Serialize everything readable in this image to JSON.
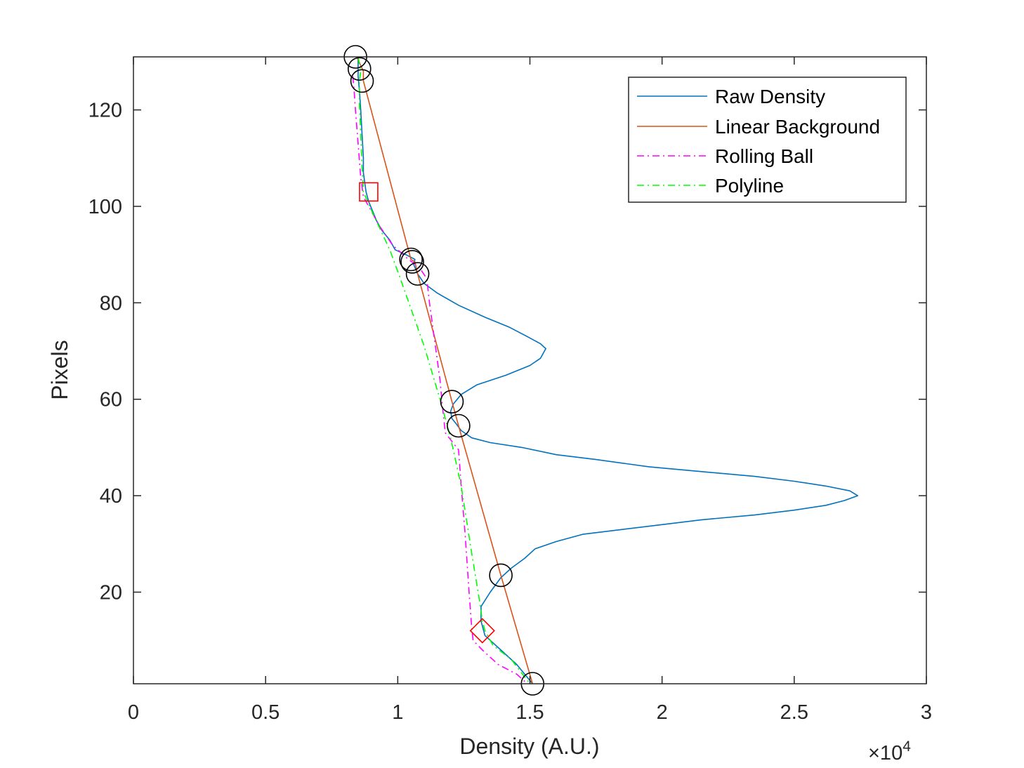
{
  "chart_data": {
    "type": "line",
    "title": "",
    "xlabel": "Density (A.U.)",
    "ylabel": "Pixels",
    "x_exponent_label": "×10",
    "x_exponent_power": "4",
    "xlim": [
      0,
      30000
    ],
    "ylim": [
      1,
      131
    ],
    "x_ticks": [
      0,
      5000,
      10000,
      15000,
      20000,
      25000,
      30000
    ],
    "x_tick_labels": [
      "0",
      "0.5",
      "1",
      "1.5",
      "2",
      "2.5",
      "3"
    ],
    "y_ticks": [
      20,
      40,
      60,
      80,
      100,
      120
    ],
    "y_tick_labels": [
      "20",
      "40",
      "60",
      "80",
      "100",
      "120"
    ],
    "grid": false,
    "legend_placement": "top-right",
    "series": [
      {
        "name": "Raw Density",
        "color": "#0072BD",
        "dash": "solid",
        "points": [
          [
            15100,
            1
          ],
          [
            14500,
            5
          ],
          [
            13900,
            8
          ],
          [
            13300,
            11
          ],
          [
            13150,
            14
          ],
          [
            13150,
            17
          ],
          [
            13500,
            20
          ],
          [
            13900,
            23
          ],
          [
            14300,
            25
          ],
          [
            14800,
            27
          ],
          [
            15200,
            29
          ],
          [
            16000,
            30.5
          ],
          [
            17000,
            32
          ],
          [
            18500,
            33
          ],
          [
            20000,
            34
          ],
          [
            21500,
            35
          ],
          [
            23500,
            36
          ],
          [
            25000,
            37
          ],
          [
            26200,
            38
          ],
          [
            26900,
            39
          ],
          [
            27400,
            40
          ],
          [
            27100,
            41
          ],
          [
            26200,
            42
          ],
          [
            25000,
            43
          ],
          [
            23500,
            44
          ],
          [
            21500,
            45
          ],
          [
            19500,
            46
          ],
          [
            17500,
            47.5
          ],
          [
            16000,
            48.5
          ],
          [
            14700,
            50
          ],
          [
            13500,
            51
          ],
          [
            12800,
            52
          ],
          [
            12400,
            53.5
          ],
          [
            12200,
            55
          ],
          [
            12050,
            56
          ],
          [
            12000,
            57.5
          ],
          [
            12100,
            59
          ],
          [
            12400,
            61
          ],
          [
            13000,
            63
          ],
          [
            14100,
            65
          ],
          [
            15000,
            67
          ],
          [
            15400,
            68.5
          ],
          [
            15600,
            70.5
          ],
          [
            15400,
            71.5
          ],
          [
            14900,
            73
          ],
          [
            14200,
            75
          ],
          [
            13300,
            77
          ],
          [
            12300,
            79.5
          ],
          [
            11500,
            82
          ],
          [
            11000,
            84
          ],
          [
            10750,
            86
          ],
          [
            10600,
            88
          ],
          [
            10650,
            89
          ],
          [
            10300,
            90
          ],
          [
            9900,
            91
          ],
          [
            9700,
            93
          ],
          [
            9400,
            95
          ],
          [
            9200,
            97
          ],
          [
            9050,
            99
          ],
          [
            8900,
            101
          ],
          [
            8800,
            103
          ],
          [
            8750,
            105
          ],
          [
            8700,
            107
          ],
          [
            8700,
            110
          ],
          [
            8650,
            115
          ],
          [
            8600,
            120
          ],
          [
            8550,
            124
          ],
          [
            8500,
            127
          ],
          [
            8500,
            129
          ],
          [
            8500,
            131
          ]
        ]
      },
      {
        "name": "Linear Background",
        "color": "#D95319",
        "dash": "solid",
        "points": [
          [
            8450,
            131
          ],
          [
            8700,
            128
          ],
          [
            8700,
            126
          ],
          [
            10500,
            89
          ],
          [
            10650,
            88.5
          ],
          [
            10750,
            86
          ],
          [
            12050,
            59.5
          ],
          [
            12300,
            54.5
          ],
          [
            13900,
            23.5
          ],
          [
            15100,
            1
          ]
        ]
      },
      {
        "name": "Rolling Ball",
        "color": "#FF00FF",
        "dash": "dashdot",
        "points": [
          [
            8300,
            127
          ],
          [
            8350,
            124
          ],
          [
            8400,
            120
          ],
          [
            8500,
            113
          ],
          [
            8600,
            106
          ],
          [
            8700,
            102
          ],
          [
            9000,
            99
          ],
          [
            9300,
            96
          ],
          [
            9800,
            92
          ],
          [
            10400,
            89
          ],
          [
            10800,
            87.5
          ],
          [
            11100,
            85
          ],
          [
            11200,
            80
          ],
          [
            11400,
            72
          ],
          [
            11600,
            64
          ],
          [
            11700,
            58
          ],
          [
            11800,
            53
          ],
          [
            12300,
            49.5
          ],
          [
            12400,
            42
          ],
          [
            12550,
            32
          ],
          [
            12700,
            20
          ],
          [
            12800,
            12.5
          ],
          [
            12850,
            10
          ],
          [
            13200,
            8
          ],
          [
            13800,
            5
          ],
          [
            14500,
            3
          ],
          [
            14900,
            1
          ]
        ]
      },
      {
        "name": "Polyline",
        "color": "#00FF00",
        "dash": "dashdot",
        "points": [
          [
            8500,
            131
          ],
          [
            8600,
            128
          ],
          [
            8550,
            126
          ],
          [
            8550,
            121
          ],
          [
            8600,
            115
          ],
          [
            8650,
            108
          ],
          [
            8700,
            103
          ],
          [
            9100,
            98
          ],
          [
            9400,
            94.5
          ],
          [
            9700,
            91
          ],
          [
            10100,
            85
          ],
          [
            11000,
            71
          ],
          [
            11600,
            60
          ],
          [
            12000,
            52
          ],
          [
            12400,
            42
          ],
          [
            12800,
            28
          ],
          [
            13100,
            18
          ],
          [
            13200,
            14
          ],
          [
            13300,
            12
          ],
          [
            13600,
            9
          ],
          [
            14300,
            6
          ],
          [
            15000,
            1
          ]
        ]
      }
    ],
    "markers": {
      "circles": [
        [
          8400,
          131
        ],
        [
          8550,
          128.5
        ],
        [
          8650,
          126
        ],
        [
          10500,
          89
        ],
        [
          10550,
          88.5
        ],
        [
          10750,
          86
        ],
        [
          12050,
          59.5
        ],
        [
          12300,
          54.5
        ],
        [
          13900,
          23.5
        ],
        [
          15100,
          1
        ]
      ],
      "squares": [
        [
          8900,
          103
        ]
      ],
      "diamonds": [
        [
          13200,
          12
        ]
      ],
      "circle_color": "#000000",
      "square_color": "#FF0000",
      "diamond_color": "#FF0000"
    }
  }
}
